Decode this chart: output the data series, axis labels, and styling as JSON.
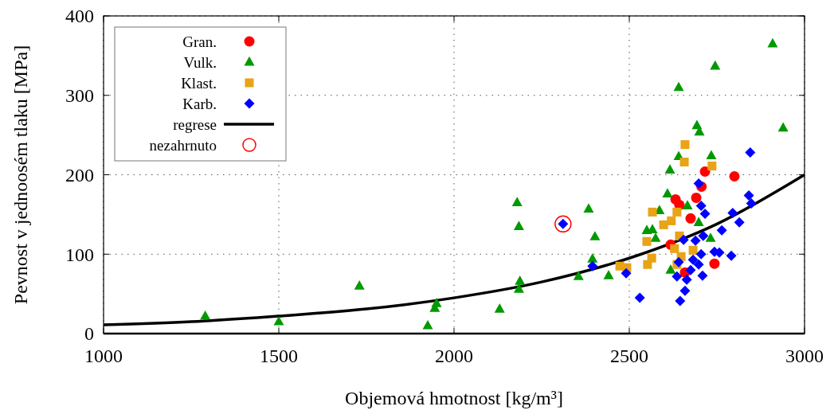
{
  "chart_data": {
    "type": "scatter",
    "xlabel": "Objemová hmotnost [kg/m³]",
    "ylabel": "Pevnost v jednoosém tlaku [MPa]",
    "xlim": [
      1000,
      3000
    ],
    "ylim": [
      0,
      400
    ],
    "xticks": [
      1000,
      1500,
      2000,
      2500,
      3000
    ],
    "yticks": [
      0,
      100,
      200,
      300,
      400
    ],
    "grid": true,
    "legend": "top left",
    "series": [
      {
        "name": "Gran.",
        "color": "#ff0000",
        "marker": "circle",
        "x": [
          2716,
          2706,
          2691,
          2632,
          2643,
          2675,
          2618,
          2659,
          2743,
          2800
        ],
        "values": [
          204,
          185,
          171,
          169,
          162,
          145,
          112,
          77,
          88,
          198
        ]
      },
      {
        "name": "Vulk.",
        "color": "#009900",
        "marker": "triangle",
        "x": [
          1290,
          1500,
          1730,
          1925,
          1945,
          1950,
          2130,
          2180,
          2185,
          2185,
          2188,
          2355,
          2384,
          2402,
          2395,
          2441,
          2616,
          2609,
          2586,
          2550,
          2566,
          2575,
          2666,
          2698,
          2618,
          2732,
          2909,
          2745,
          2641,
          2693,
          2700,
          2939,
          2641,
          2734
        ],
        "values": [
          22,
          15,
          60,
          10,
          32,
          38,
          31,
          165,
          135,
          56,
          66,
          72,
          157,
          122,
          94,
          73,
          206,
          176,
          155,
          130,
          131,
          120,
          161,
          140,
          80,
          120,
          365,
          337,
          310,
          262,
          254,
          259,
          223,
          224
        ]
      },
      {
        "name": "Klast.",
        "color": "#e8a317",
        "marker": "square",
        "x": [
          2659,
          2657,
          2736,
          2566,
          2636,
          2620,
          2598,
          2643,
          2550,
          2629,
          2564,
          2552,
          2473,
          2493,
          2648,
          2636,
          2682
        ],
        "values": [
          238,
          216,
          211,
          153,
          153,
          142,
          137,
          123,
          116,
          107,
          95,
          87,
          85,
          83,
          97,
          87,
          105
        ]
      },
      {
        "name": "Karb.",
        "color": "#0000ff",
        "marker": "diamond",
        "x": [
          2311,
          2395,
          2491,
          2530,
          2645,
          2659,
          2664,
          2636,
          2641,
          2655,
          2698,
          2705,
          2716,
          2682,
          2698,
          2709,
          2689,
          2711,
          2705,
          2675,
          2743,
          2845,
          2841,
          2848,
          2795,
          2814,
          2764,
          2791,
          2757
        ],
        "values": [
          138,
          85,
          76,
          45,
          41,
          54,
          68,
          72,
          90,
          118,
          189,
          161,
          151,
          93,
          87,
          73,
          117,
          123,
          100,
          80,
          103,
          228,
          174,
          164,
          152,
          140,
          130,
          98,
          102
        ]
      },
      {
        "name": "regrese",
        "color": "#000000",
        "type": "line",
        "marker": "none",
        "line_style": "solid",
        "x": [
          1000,
          1250,
          1500,
          1750,
          2000,
          2250,
          2500,
          2750,
          3000
        ],
        "values": [
          11,
          15,
          22,
          31,
          45,
          65,
          95,
          138,
          200
        ]
      },
      {
        "name": "nezahrnuto",
        "color": "#ff0000",
        "type": "scatter",
        "marker": "circle",
        "x": [
          2311
        ],
        "values": [
          138
        ]
      }
    ]
  }
}
